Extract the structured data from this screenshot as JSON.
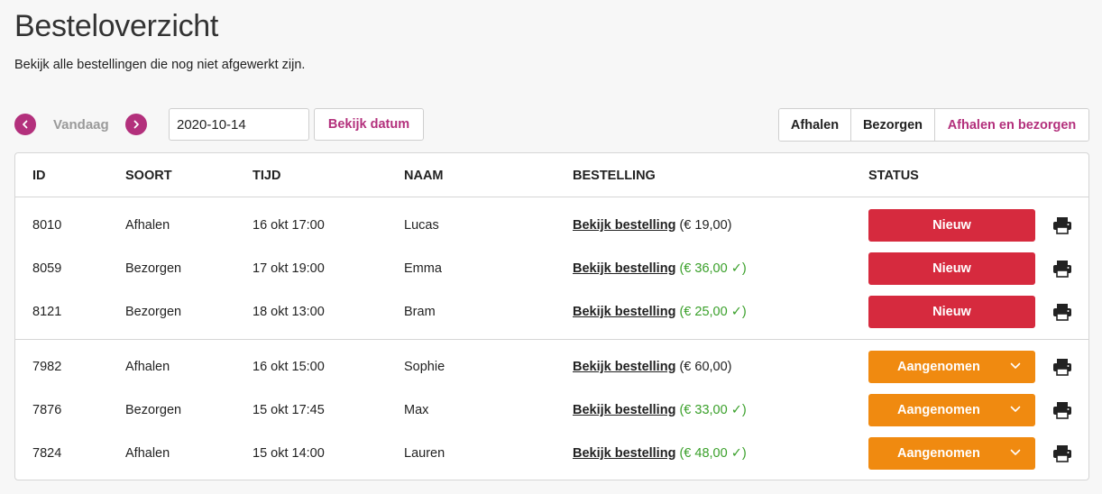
{
  "page": {
    "title": "Besteloverzicht",
    "subtitle": "Bekijk alle bestellingen die nog niet afgewerkt zijn."
  },
  "date_nav": {
    "prev_icon": "chevron-left-icon",
    "today_label": "Vandaag",
    "next_icon": "chevron-right-icon",
    "date_value": "2020-10-14",
    "view_button": "Bekijk datum"
  },
  "filters": {
    "pickup": "Afhalen",
    "delivery": "Bezorgen",
    "both": "Afhalen en bezorgen",
    "active": "both",
    "active_color": "#b3307c"
  },
  "table": {
    "headers": {
      "id": "ID",
      "type": "SOORT",
      "time": "TIJD",
      "name": "NAAM",
      "order": "BESTELLING",
      "status": "STATUS"
    },
    "rows": [
      {
        "id": "8010",
        "type": "Afhalen",
        "time": "16 okt 17:00",
        "name": "Lucas",
        "link": "Bekijk bestelling",
        "price": "(€ 19,00)",
        "paid": false,
        "status": "Nieuw",
        "status_kind": "new"
      },
      {
        "id": "8059",
        "type": "Bezorgen",
        "time": "17 okt 19:00",
        "name": "Emma",
        "link": "Bekijk bestelling",
        "price": "(€ 36,00 ✓)",
        "paid": true,
        "status": "Nieuw",
        "status_kind": "new"
      },
      {
        "id": "8121",
        "type": "Bezorgen",
        "time": "18 okt 13:00",
        "name": "Bram",
        "link": "Bekijk bestelling",
        "price": "(€ 25,00 ✓)",
        "paid": true,
        "status": "Nieuw",
        "status_kind": "new"
      },
      {
        "id": "7982",
        "type": "Afhalen",
        "time": "16 okt 15:00",
        "name": "Sophie",
        "link": "Bekijk bestelling",
        "price": "(€ 60,00)",
        "paid": false,
        "status": "Aangenomen",
        "status_kind": "accepted"
      },
      {
        "id": "7876",
        "type": "Bezorgen",
        "time": "15 okt 17:45",
        "name": "Max",
        "link": "Bekijk bestelling",
        "price": "(€ 33,00 ✓)",
        "paid": true,
        "status": "Aangenomen",
        "status_kind": "accepted"
      },
      {
        "id": "7824",
        "type": "Afhalen",
        "time": "15 okt 14:00",
        "name": "Lauren",
        "link": "Bekijk bestelling",
        "price": "(€ 48,00 ✓)",
        "paid": true,
        "status": "Aangenomen",
        "status_kind": "accepted"
      }
    ]
  },
  "colors": {
    "accent": "#b3307c",
    "status_new": "#d62a3e",
    "status_accepted": "#f08a10",
    "paid": "#3aa02a"
  },
  "icons": {
    "print": "printer-icon",
    "dropdown": "chevron-down-icon"
  }
}
